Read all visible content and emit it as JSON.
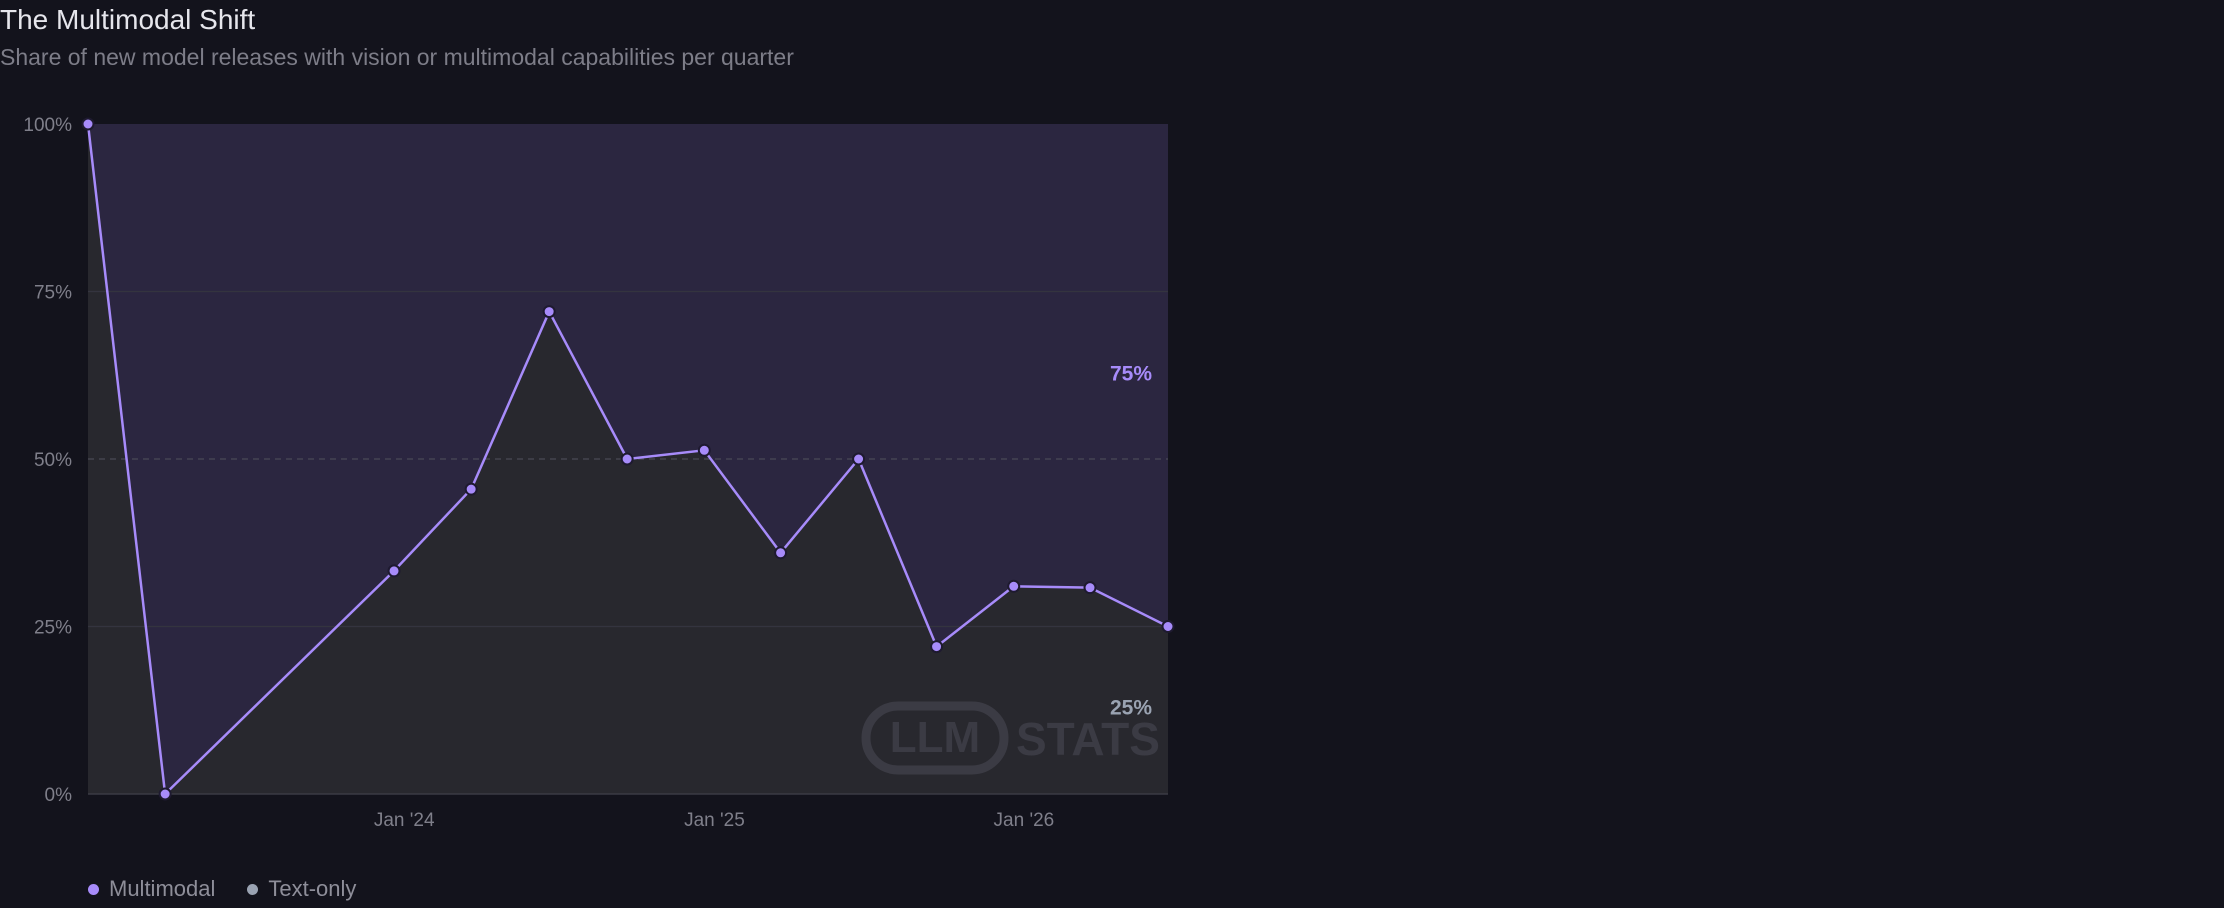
{
  "title": "The Multimodal Shift",
  "subtitle": "Share of new model releases with vision or multimodal capabilities per quarter",
  "colors": {
    "multimodal": "#a78bfa",
    "text_only": "#9aa3b2",
    "upper_area": "#2b2640",
    "lower_area": "#28282e",
    "grid": "#34343f"
  },
  "watermark": {
    "box": "LLM",
    "text": "STATS"
  },
  "legend": [
    {
      "label": "Multimodal",
      "color": "#a78bfa"
    },
    {
      "label": "Text-only",
      "color": "#9aa3b2"
    }
  ],
  "chart_data": {
    "type": "area",
    "title": "The Multimodal Shift",
    "subtitle": "Share of new model releases with vision or multimodal capabilities per quarter",
    "xlabel": "",
    "ylabel": "",
    "ylim": [
      0,
      100
    ],
    "y_ticks": [
      0,
      25,
      50,
      75,
      100
    ],
    "y_tick_labels": [
      "0%",
      "25%",
      "50%",
      "75%",
      "100%"
    ],
    "x_ticks": [
      "2024-01-01",
      "2025-01-01",
      "2026-01-01"
    ],
    "x_tick_labels": [
      "Jan '24",
      "Jan '25",
      "Jan '26"
    ],
    "xlim": [
      "2022-12-24",
      "2026-06-20"
    ],
    "grid": true,
    "legend_position": "bottom-left",
    "reference_line": 50,
    "x": [
      "2022-12-24",
      "2023-03-25",
      "2023-12-20",
      "2024-03-20",
      "2024-06-20",
      "2024-09-20",
      "2024-12-20",
      "2025-03-20",
      "2025-06-20",
      "2025-09-20",
      "2025-12-20",
      "2026-03-20",
      "2026-06-20"
    ],
    "series": [
      {
        "name": "Multimodal",
        "values": [
          100,
          0,
          33.3,
          45.5,
          72,
          50,
          51.3,
          36,
          50,
          22,
          31,
          30.8,
          25
        ]
      },
      {
        "name": "Text-only",
        "values": [
          0,
          100,
          66.7,
          54.5,
          28,
          50,
          48.7,
          64,
          50,
          78,
          69,
          69.2,
          75
        ]
      }
    ],
    "end_labels": {
      "text_only": "75%",
      "multimodal": "25%"
    }
  }
}
